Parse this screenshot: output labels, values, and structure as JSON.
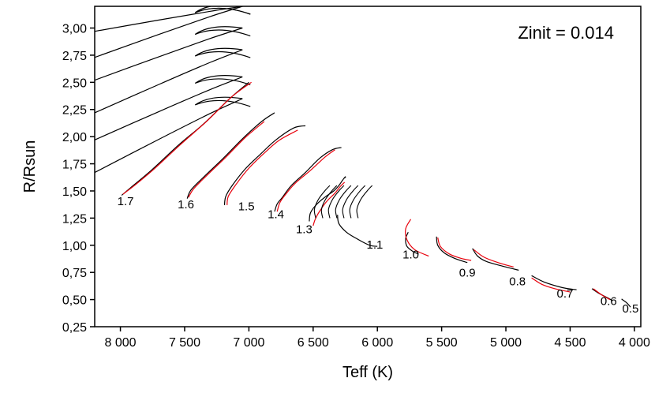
{
  "chart_data": {
    "type": "line",
    "title": "",
    "annotation": "Zinit = 0.014",
    "xlabel": "Teff (K)",
    "ylabel": "R/Rsun",
    "xlim": [
      8200,
      3950
    ],
    "ylim": [
      0.25,
      3.2
    ],
    "x_ticks": [
      8000,
      7500,
      7000,
      6500,
      6000,
      5500,
      5000,
      4500,
      4000
    ],
    "x_tick_labels": [
      "8 000",
      "7 500",
      "7 000",
      "6 500",
      "6 000",
      "5 500",
      "5 000",
      "4 500",
      "4 000"
    ],
    "y_ticks": [
      0.25,
      0.5,
      0.75,
      1.0,
      1.25,
      1.5,
      1.75,
      2.0,
      2.25,
      2.5,
      2.75,
      3.0
    ],
    "y_tick_labels": [
      "0,25",
      "0,50",
      "0,75",
      "1,00",
      "1,25",
      "1,50",
      "1,75",
      "2,00",
      "2,25",
      "2,50",
      "2,75",
      "3,00"
    ],
    "series_colors": {
      "model_a": "#000000",
      "model_b": "#e8000b"
    },
    "mass_labels": [
      {
        "text": "1.7",
        "teff": 7960,
        "r": 1.37
      },
      {
        "text": "1.6",
        "teff": 7490,
        "r": 1.34
      },
      {
        "text": "1.5",
        "teff": 7020,
        "r": 1.32
      },
      {
        "text": "1.4",
        "teff": 6790,
        "r": 1.25
      },
      {
        "text": "1.3",
        "teff": 6570,
        "r": 1.11
      },
      {
        "text": "1.1",
        "teff": 6020,
        "r": 0.97
      },
      {
        "text": "1.0",
        "teff": 5740,
        "r": 0.88
      },
      {
        "text": "0.9",
        "teff": 5300,
        "r": 0.71
      },
      {
        "text": "0.8",
        "teff": 4910,
        "r": 0.63
      },
      {
        "text": "0.7",
        "teff": 4540,
        "r": 0.52
      },
      {
        "text": "0.6",
        "teff": 4200,
        "r": 0.45
      },
      {
        "text": "0.5",
        "teff": 4030,
        "r": 0.38
      }
    ],
    "series": [
      {
        "name": "M=0.5 model A",
        "color": "model_a",
        "points": [
          [
            4100,
            0.505
          ],
          [
            4060,
            0.47
          ],
          [
            4030,
            0.43
          ]
        ]
      },
      {
        "name": "M=0.6 model A",
        "color": "model_a",
        "points": [
          [
            4330,
            0.6
          ],
          [
            4280,
            0.56
          ],
          [
            4200,
            0.51
          ],
          [
            4170,
            0.49
          ]
        ]
      },
      {
        "name": "M=0.6 model B",
        "color": "model_b",
        "points": [
          [
            4320,
            0.6
          ],
          [
            4250,
            0.54
          ],
          [
            4190,
            0.5
          ]
        ]
      },
      {
        "name": "M=0.7 model A",
        "color": "model_a",
        "points": [
          [
            4800,
            0.72
          ],
          [
            4700,
            0.66
          ],
          [
            4560,
            0.61
          ],
          [
            4450,
            0.59
          ]
        ]
      },
      {
        "name": "M=0.7 model B",
        "color": "model_b",
        "points": [
          [
            4800,
            0.7
          ],
          [
            4720,
            0.64
          ],
          [
            4620,
            0.6
          ],
          [
            4500,
            0.57
          ]
        ]
      },
      {
        "name": "M=0.8 model A",
        "color": "model_a",
        "points": [
          [
            5260,
            0.97
          ],
          [
            5220,
            0.9
          ],
          [
            5150,
            0.85
          ],
          [
            5000,
            0.8
          ],
          [
            4900,
            0.77
          ]
        ]
      },
      {
        "name": "M=0.8 model B",
        "color": "model_b",
        "points": [
          [
            5250,
            0.96
          ],
          [
            5170,
            0.89
          ],
          [
            5060,
            0.84
          ],
          [
            4940,
            0.8
          ]
        ]
      },
      {
        "name": "M=0.9 model A",
        "color": "model_a",
        "points": [
          [
            5540,
            1.08
          ],
          [
            5530,
            1.0
          ],
          [
            5480,
            0.93
          ],
          [
            5400,
            0.88
          ],
          [
            5300,
            0.84
          ]
        ]
      },
      {
        "name": "M=0.9 model B",
        "color": "model_b",
        "points": [
          [
            5530,
            1.07
          ],
          [
            5510,
            0.99
          ],
          [
            5440,
            0.92
          ],
          [
            5350,
            0.88
          ],
          [
            5270,
            0.86
          ]
        ]
      },
      {
        "name": "M=1.0 model A",
        "color": "model_a",
        "points": [
          [
            5760,
            1.12
          ],
          [
            5780,
            1.06
          ],
          [
            5770,
            0.99
          ],
          [
            5720,
            0.94
          ],
          [
            5680,
            0.92
          ]
        ]
      },
      {
        "name": "M=1.0 model B",
        "color": "model_b",
        "points": [
          [
            5740,
            1.24
          ],
          [
            5780,
            1.15
          ],
          [
            5770,
            1.05
          ],
          [
            5710,
            0.96
          ],
          [
            5600,
            0.9
          ]
        ]
      },
      {
        "name": "M=1.1 model A",
        "color": "model_a",
        "points": [
          [
            6310,
            1.28
          ],
          [
            6300,
            1.2
          ],
          [
            6240,
            1.12
          ],
          [
            6160,
            1.06
          ],
          [
            6060,
            1.0
          ],
          [
            6000,
            0.99
          ]
        ]
      },
      {
        "name": "M=1.3 model A",
        "color": "model_a",
        "points": [
          [
            6530,
            1.22
          ],
          [
            6520,
            1.3
          ],
          [
            6470,
            1.38
          ],
          [
            6400,
            1.45
          ],
          [
            6340,
            1.5
          ],
          [
            6300,
            1.55
          ],
          [
            6270,
            1.6
          ],
          [
            6250,
            1.63
          ],
          [
            6250,
            1.62
          ]
        ]
      },
      {
        "name": "M=1.3 model B",
        "color": "model_b",
        "points": [
          [
            6500,
            1.18
          ],
          [
            6480,
            1.25
          ],
          [
            6440,
            1.33
          ],
          [
            6390,
            1.41
          ],
          [
            6330,
            1.48
          ],
          [
            6290,
            1.54
          ],
          [
            6255,
            1.58
          ]
        ]
      },
      {
        "name": "M=1.4 model A",
        "color": "model_a",
        "points": [
          [
            6800,
            1.31
          ],
          [
            6780,
            1.38
          ],
          [
            6740,
            1.44
          ],
          [
            6670,
            1.55
          ],
          [
            6560,
            1.67
          ],
          [
            6450,
            1.8
          ],
          [
            6350,
            1.88
          ],
          [
            6280,
            1.9
          ]
        ]
      },
      {
        "name": "M=1.4 model B",
        "color": "model_b",
        "points": [
          [
            6780,
            1.31
          ],
          [
            6760,
            1.39
          ],
          [
            6720,
            1.46
          ],
          [
            6640,
            1.57
          ],
          [
            6520,
            1.69
          ],
          [
            6410,
            1.81
          ],
          [
            6330,
            1.88
          ]
        ]
      },
      {
        "name": "M=1.5 model A",
        "color": "model_a",
        "points": [
          [
            7190,
            1.37
          ],
          [
            7180,
            1.45
          ],
          [
            7130,
            1.55
          ],
          [
            7030,
            1.7
          ],
          [
            6900,
            1.85
          ],
          [
            6790,
            1.97
          ],
          [
            6650,
            2.08
          ],
          [
            6560,
            2.1
          ]
        ]
      },
      {
        "name": "M=1.5 model B",
        "color": "model_b",
        "points": [
          [
            7170,
            1.37
          ],
          [
            7160,
            1.45
          ],
          [
            7100,
            1.56
          ],
          [
            7000,
            1.71
          ],
          [
            6870,
            1.86
          ],
          [
            6760,
            1.97
          ],
          [
            6620,
            2.06
          ]
        ]
      },
      {
        "name": "M=1.6 model A",
        "color": "model_a",
        "points": [
          [
            7480,
            1.43
          ],
          [
            7450,
            1.51
          ],
          [
            7350,
            1.63
          ],
          [
            7200,
            1.8
          ],
          [
            7050,
            1.98
          ],
          [
            6900,
            2.14
          ],
          [
            6800,
            2.22
          ]
        ]
      },
      {
        "name": "M=1.6 model B",
        "color": "model_b",
        "points": [
          [
            7470,
            1.44
          ],
          [
            7430,
            1.52
          ],
          [
            7330,
            1.64
          ],
          [
            7180,
            1.81
          ],
          [
            7030,
            1.99
          ],
          [
            6880,
            2.14
          ]
        ]
      },
      {
        "name": "M=1.7 model A",
        "color": "model_a",
        "points": [
          [
            7990,
            1.46
          ],
          [
            7900,
            1.55
          ],
          [
            7750,
            1.7
          ],
          [
            7550,
            1.92
          ],
          [
            7350,
            2.12
          ],
          [
            7150,
            2.35
          ],
          [
            7000,
            2.5
          ]
        ]
      },
      {
        "name": "M=1.7 model B",
        "color": "model_b",
        "points": [
          [
            7980,
            1.47
          ],
          [
            7880,
            1.56
          ],
          [
            7730,
            1.71
          ],
          [
            7530,
            1.93
          ],
          [
            7330,
            2.14
          ],
          [
            7130,
            2.37
          ],
          [
            6980,
            2.5
          ]
        ]
      }
    ],
    "background_tracks": {
      "color": "model_a",
      "count": 6,
      "start_r": [
        1.67,
        1.97,
        2.22,
        2.52,
        2.73,
        2.97
      ],
      "end_r": [
        2.35,
        2.55,
        2.8,
        3.0,
        3.2,
        3.2
      ]
    }
  }
}
